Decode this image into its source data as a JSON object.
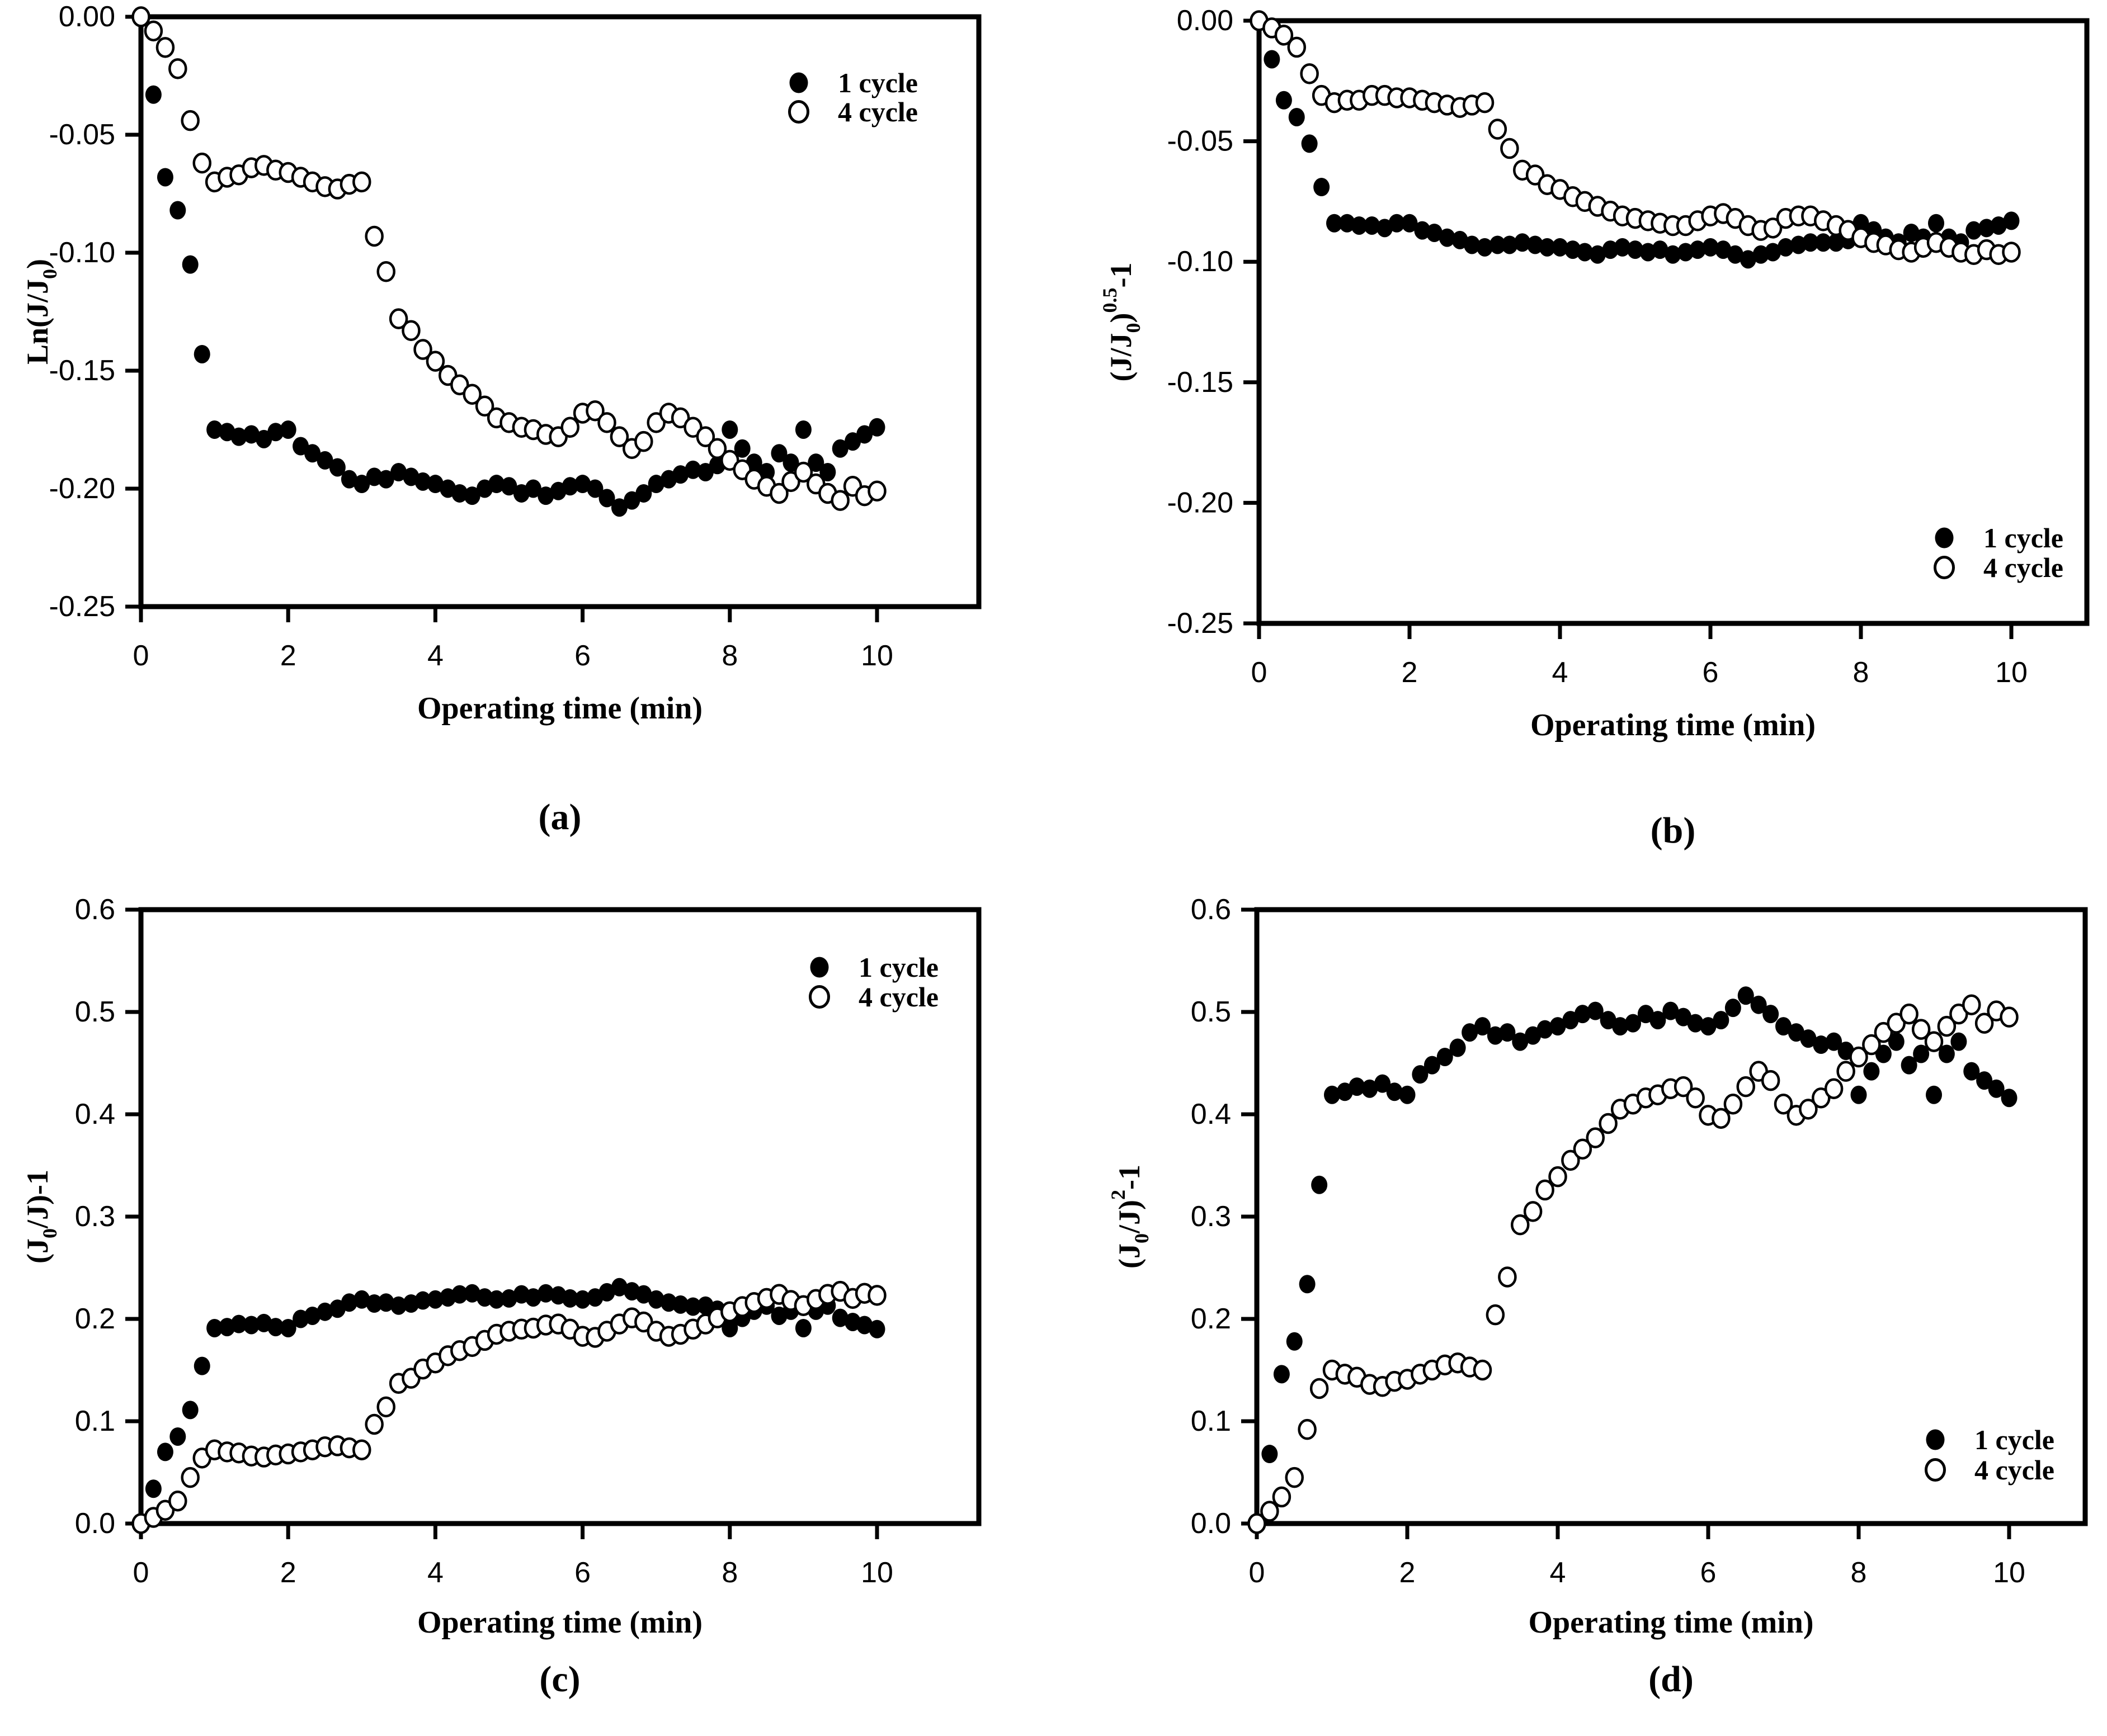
{
  "figure": {
    "background": "#ffffff",
    "ink_color": "#000000",
    "xlabel": "Operating time (min)",
    "legend_labels": [
      "1 cycle",
      "4 cycle"
    ]
  },
  "chart_data": [
    {
      "id": "a",
      "type": "scatter",
      "caption": "(a)",
      "xlabel": "Operating time (min)",
      "ylabel_text": "Ln(J/J0)",
      "ylabel_parts": [
        {
          "t": "Ln(J/J"
        },
        {
          "t": "0",
          "s": "sub"
        },
        {
          "t": ")"
        }
      ],
      "xlim": [
        0,
        11
      ],
      "ylim": [
        -0.25,
        0
      ],
      "x_ticks": [
        0,
        2,
        4,
        6,
        8,
        10
      ],
      "y_ticks": [
        0,
        -0.05,
        -0.1,
        -0.15,
        -0.2,
        -0.25
      ],
      "y_tick_labels": [
        "0.00",
        "-0.05",
        "-0.10",
        "-0.15",
        "-0.20",
        "-0.25"
      ],
      "grid": false,
      "legend_position": "upper-right",
      "legend": [
        {
          "label": "1 cycle",
          "marker": "filled"
        },
        {
          "label": "4 cycle",
          "marker": "open"
        }
      ],
      "x": [
        0,
        0.17,
        0.33,
        0.5,
        0.67,
        0.83,
        1,
        1.17,
        1.33,
        1.5,
        1.67,
        1.83,
        2,
        2.17,
        2.33,
        2.5,
        2.67,
        2.83,
        3,
        3.17,
        3.33,
        3.5,
        3.67,
        3.83,
        4,
        4.17,
        4.33,
        4.5,
        4.67,
        4.83,
        5,
        5.17,
        5.33,
        5.5,
        5.67,
        5.83,
        6,
        6.17,
        6.33,
        6.5,
        6.67,
        6.83,
        7,
        7.17,
        7.33,
        7.5,
        7.67,
        7.83,
        8,
        8.17,
        8.33,
        8.5,
        8.67,
        8.83,
        9,
        9.17,
        9.33,
        9.5,
        9.67,
        9.83,
        10
      ],
      "series": [
        {
          "name": "1 cycle",
          "marker": "filled",
          "values": [
            0,
            -0.033,
            -0.068,
            -0.082,
            -0.105,
            -0.143,
            -0.175,
            -0.176,
            -0.178,
            -0.177,
            -0.179,
            -0.176,
            -0.175,
            -0.182,
            -0.185,
            -0.188,
            -0.191,
            -0.196,
            -0.198,
            -0.195,
            -0.196,
            -0.193,
            -0.195,
            -0.197,
            -0.198,
            -0.2,
            -0.202,
            -0.203,
            -0.2,
            -0.198,
            -0.199,
            -0.202,
            -0.2,
            -0.203,
            -0.201,
            -0.199,
            -0.198,
            -0.2,
            -0.204,
            -0.208,
            -0.205,
            -0.202,
            -0.198,
            -0.196,
            -0.194,
            -0.192,
            -0.193,
            -0.19,
            -0.175,
            -0.183,
            -0.189,
            -0.193,
            -0.185,
            -0.189,
            -0.175,
            -0.189,
            -0.193,
            -0.183,
            -0.18,
            -0.177,
            -0.174
          ]
        },
        {
          "name": "4 cycle",
          "marker": "open",
          "values": [
            0,
            -0.006,
            -0.013,
            -0.022,
            -0.044,
            -0.062,
            -0.07,
            -0.068,
            -0.067,
            -0.064,
            -0.063,
            -0.065,
            -0.066,
            -0.068,
            -0.07,
            -0.072,
            -0.073,
            -0.071,
            -0.07,
            -0.093,
            -0.108,
            -0.128,
            -0.133,
            -0.141,
            -0.146,
            -0.152,
            -0.156,
            -0.16,
            -0.165,
            -0.17,
            -0.172,
            -0.174,
            -0.175,
            -0.177,
            -0.178,
            -0.174,
            -0.168,
            -0.167,
            -0.172,
            -0.178,
            -0.183,
            -0.18,
            -0.172,
            -0.168,
            -0.17,
            -0.174,
            -0.178,
            -0.183,
            -0.188,
            -0.192,
            -0.196,
            -0.199,
            -0.202,
            -0.197,
            -0.193,
            -0.198,
            -0.202,
            -0.205,
            -0.199,
            -0.203,
            -0.201
          ]
        }
      ]
    },
    {
      "id": "b",
      "type": "scatter",
      "caption": "(b)",
      "xlabel": "Operating time (min)",
      "ylabel_text": "(J/J0)^0.5-1",
      "ylabel_parts": [
        {
          "t": "(J/J"
        },
        {
          "t": "0",
          "s": "sub"
        },
        {
          "t": ")"
        },
        {
          "t": "0.5",
          "s": "sup"
        },
        {
          "t": "-1"
        }
      ],
      "xlim": [
        0,
        11
      ],
      "ylim": [
        -0.25,
        0
      ],
      "x_ticks": [
        0,
        2,
        4,
        6,
        8,
        10
      ],
      "y_ticks": [
        0,
        -0.05,
        -0.1,
        -0.15,
        -0.2,
        -0.25
      ],
      "y_tick_labels": [
        "0.00",
        "-0.05",
        "-0.10",
        "-0.15",
        "-0.20",
        "-0.25"
      ],
      "grid": false,
      "legend_position": "lower-right",
      "legend": [
        {
          "label": "1 cycle",
          "marker": "filled"
        },
        {
          "label": "4 cycle",
          "marker": "open"
        }
      ],
      "x": [
        0,
        0.17,
        0.33,
        0.5,
        0.67,
        0.83,
        1,
        1.17,
        1.33,
        1.5,
        1.67,
        1.83,
        2,
        2.17,
        2.33,
        2.5,
        2.67,
        2.83,
        3,
        3.17,
        3.33,
        3.5,
        3.67,
        3.83,
        4,
        4.17,
        4.33,
        4.5,
        4.67,
        4.83,
        5,
        5.17,
        5.33,
        5.5,
        5.67,
        5.83,
        6,
        6.17,
        6.33,
        6.5,
        6.67,
        6.83,
        7,
        7.17,
        7.33,
        7.5,
        7.67,
        7.83,
        8,
        8.17,
        8.33,
        8.5,
        8.67,
        8.83,
        9,
        9.17,
        9.33,
        9.5,
        9.67,
        9.83,
        10
      ],
      "series": [
        {
          "name": "1 cycle",
          "marker": "filled",
          "values": [
            0,
            -0.016,
            -0.033,
            -0.04,
            -0.051,
            -0.069,
            -0.084,
            -0.084,
            -0.085,
            -0.085,
            -0.086,
            -0.084,
            -0.084,
            -0.087,
            -0.088,
            -0.09,
            -0.091,
            -0.093,
            -0.094,
            -0.093,
            -0.093,
            -0.092,
            -0.093,
            -0.094,
            -0.094,
            -0.095,
            -0.096,
            -0.097,
            -0.095,
            -0.094,
            -0.095,
            -0.096,
            -0.095,
            -0.097,
            -0.096,
            -0.095,
            -0.094,
            -0.095,
            -0.097,
            -0.099,
            -0.097,
            -0.096,
            -0.094,
            -0.093,
            -0.092,
            -0.092,
            -0.092,
            -0.091,
            -0.084,
            -0.087,
            -0.09,
            -0.092,
            -0.088,
            -0.09,
            -0.084,
            -0.09,
            -0.092,
            -0.087,
            -0.086,
            -0.085,
            -0.083
          ]
        },
        {
          "name": "4 cycle",
          "marker": "open",
          "values": [
            0,
            -0.003,
            -0.006,
            -0.011,
            -0.022,
            -0.031,
            -0.034,
            -0.033,
            -0.033,
            -0.031,
            -0.031,
            -0.032,
            -0.032,
            -0.033,
            -0.034,
            -0.035,
            -0.036,
            -0.035,
            -0.034,
            -0.045,
            -0.053,
            -0.062,
            -0.064,
            -0.068,
            -0.07,
            -0.073,
            -0.075,
            -0.077,
            -0.079,
            -0.081,
            -0.082,
            -0.083,
            -0.084,
            -0.085,
            -0.085,
            -0.083,
            -0.081,
            -0.08,
            -0.082,
            -0.085,
            -0.087,
            -0.086,
            -0.082,
            -0.081,
            -0.081,
            -0.083,
            -0.085,
            -0.087,
            -0.09,
            -0.092,
            -0.093,
            -0.095,
            -0.096,
            -0.094,
            -0.092,
            -0.094,
            -0.096,
            -0.097,
            -0.095,
            -0.097,
            -0.096
          ]
        }
      ]
    },
    {
      "id": "c",
      "type": "scatter",
      "caption": "(c)",
      "xlabel": "Operating time (min)",
      "ylabel_text": "(J0/J)-1",
      "ylabel_parts": [
        {
          "t": "(J"
        },
        {
          "t": "0",
          "s": "sub"
        },
        {
          "t": "/J)-1"
        }
      ],
      "xlim": [
        0,
        11
      ],
      "ylim": [
        0,
        0.6
      ],
      "x_ticks": [
        0,
        2,
        4,
        6,
        8,
        10
      ],
      "y_ticks": [
        0,
        0.1,
        0.2,
        0.3,
        0.4,
        0.5,
        0.6
      ],
      "y_tick_labels": [
        "0.0",
        "0.1",
        "0.2",
        "0.3",
        "0.4",
        "0.5",
        "0.6"
      ],
      "grid": false,
      "legend_position": "upper-right",
      "legend": [
        {
          "label": "1 cycle",
          "marker": "filled"
        },
        {
          "label": "4 cycle",
          "marker": "open"
        }
      ],
      "x": [
        0,
        0.17,
        0.33,
        0.5,
        0.67,
        0.83,
        1,
        1.17,
        1.33,
        1.5,
        1.67,
        1.83,
        2,
        2.17,
        2.33,
        2.5,
        2.67,
        2.83,
        3,
        3.17,
        3.33,
        3.5,
        3.67,
        3.83,
        4,
        4.17,
        4.33,
        4.5,
        4.67,
        4.83,
        5,
        5.17,
        5.33,
        5.5,
        5.67,
        5.83,
        6,
        6.17,
        6.33,
        6.5,
        6.67,
        6.83,
        7,
        7.17,
        7.33,
        7.5,
        7.67,
        7.83,
        8,
        8.17,
        8.33,
        8.5,
        8.67,
        8.83,
        9,
        9.17,
        9.33,
        9.5,
        9.67,
        9.83,
        10
      ],
      "series": [
        {
          "name": "1 cycle",
          "marker": "filled",
          "values": [
            0,
            0.034,
            0.07,
            0.085,
            0.111,
            0.154,
            0.191,
            0.192,
            0.195,
            0.194,
            0.196,
            0.192,
            0.191,
            0.2,
            0.203,
            0.207,
            0.21,
            0.216,
            0.219,
            0.215,
            0.216,
            0.213,
            0.215,
            0.218,
            0.219,
            0.221,
            0.224,
            0.225,
            0.221,
            0.219,
            0.22,
            0.224,
            0.221,
            0.225,
            0.223,
            0.22,
            0.219,
            0.221,
            0.226,
            0.231,
            0.227,
            0.224,
            0.219,
            0.216,
            0.214,
            0.212,
            0.213,
            0.209,
            0.191,
            0.201,
            0.208,
            0.213,
            0.203,
            0.208,
            0.191,
            0.208,
            0.213,
            0.201,
            0.197,
            0.194,
            0.19
          ]
        },
        {
          "name": "4 cycle",
          "marker": "open",
          "values": [
            0,
            0.006,
            0.013,
            0.022,
            0.045,
            0.064,
            0.072,
            0.07,
            0.069,
            0.066,
            0.065,
            0.067,
            0.068,
            0.07,
            0.072,
            0.075,
            0.076,
            0.074,
            0.072,
            0.097,
            0.114,
            0.137,
            0.142,
            0.151,
            0.157,
            0.164,
            0.169,
            0.173,
            0.179,
            0.185,
            0.188,
            0.19,
            0.191,
            0.194,
            0.195,
            0.19,
            0.183,
            0.182,
            0.188,
            0.195,
            0.201,
            0.197,
            0.188,
            0.183,
            0.185,
            0.19,
            0.195,
            0.201,
            0.207,
            0.212,
            0.216,
            0.22,
            0.224,
            0.218,
            0.213,
            0.219,
            0.224,
            0.227,
            0.22,
            0.225,
            0.223
          ]
        }
      ]
    },
    {
      "id": "d",
      "type": "scatter",
      "caption": "(d)",
      "xlabel": "Operating time (min)",
      "ylabel_text": "(J0/J)^2-1",
      "ylabel_parts": [
        {
          "t": "(J"
        },
        {
          "t": "0",
          "s": "sub"
        },
        {
          "t": "/J)"
        },
        {
          "t": "2",
          "s": "sup"
        },
        {
          "t": "-1"
        }
      ],
      "xlim": [
        0,
        11
      ],
      "ylim": [
        0,
        0.6
      ],
      "x_ticks": [
        0,
        2,
        4,
        6,
        8,
        10
      ],
      "y_ticks": [
        0,
        0.1,
        0.2,
        0.3,
        0.4,
        0.5,
        0.6
      ],
      "y_tick_labels": [
        "0.0",
        "0.1",
        "0.2",
        "0.3",
        "0.4",
        "0.5",
        "0.6"
      ],
      "grid": false,
      "legend_position": "lower-right",
      "legend": [
        {
          "label": "1 cycle",
          "marker": "filled"
        },
        {
          "label": "4 cycle",
          "marker": "open"
        }
      ],
      "x": [
        0,
        0.17,
        0.33,
        0.5,
        0.67,
        0.83,
        1,
        1.17,
        1.33,
        1.5,
        1.67,
        1.83,
        2,
        2.17,
        2.33,
        2.5,
        2.67,
        2.83,
        3,
        3.17,
        3.33,
        3.5,
        3.67,
        3.83,
        4,
        4.17,
        4.33,
        4.5,
        4.67,
        4.83,
        5,
        5.17,
        5.33,
        5.5,
        5.67,
        5.83,
        6,
        6.17,
        6.33,
        6.5,
        6.67,
        6.83,
        7,
        7.17,
        7.33,
        7.5,
        7.67,
        7.83,
        8,
        8.17,
        8.33,
        8.5,
        8.67,
        8.83,
        9,
        9.17,
        9.33,
        9.5,
        9.67,
        9.83,
        10
      ],
      "series": [
        {
          "name": "1 cycle",
          "marker": "filled",
          "values": [
            0,
            0.068,
            0.146,
            0.178,
            0.234,
            0.331,
            0.419,
            0.422,
            0.427,
            0.425,
            0.43,
            0.422,
            0.419,
            0.439,
            0.448,
            0.456,
            0.465,
            0.48,
            0.486,
            0.477,
            0.48,
            0.471,
            0.477,
            0.483,
            0.486,
            0.492,
            0.498,
            0.501,
            0.492,
            0.486,
            0.489,
            0.498,
            0.492,
            0.501,
            0.495,
            0.489,
            0.486,
            0.492,
            0.504,
            0.516,
            0.507,
            0.498,
            0.486,
            0.48,
            0.474,
            0.468,
            0.471,
            0.462,
            0.419,
            0.442,
            0.459,
            0.471,
            0.448,
            0.459,
            0.419,
            0.459,
            0.471,
            0.442,
            0.433,
            0.425,
            0.416
          ]
        },
        {
          "name": "4 cycle",
          "marker": "open",
          "values": [
            0,
            0.012,
            0.026,
            0.045,
            0.092,
            0.132,
            0.15,
            0.146,
            0.143,
            0.136,
            0.134,
            0.139,
            0.141,
            0.146,
            0.15,
            0.155,
            0.157,
            0.153,
            0.15,
            0.204,
            0.241,
            0.292,
            0.305,
            0.326,
            0.339,
            0.355,
            0.366,
            0.377,
            0.391,
            0.405,
            0.41,
            0.416,
            0.419,
            0.425,
            0.427,
            0.416,
            0.399,
            0.396,
            0.41,
            0.427,
            0.442,
            0.433,
            0.41,
            0.399,
            0.405,
            0.416,
            0.425,
            0.442,
            0.456,
            0.468,
            0.48,
            0.489,
            0.498,
            0.483,
            0.471,
            0.486,
            0.498,
            0.507,
            0.489,
            0.501,
            0.495
          ]
        }
      ]
    }
  ]
}
